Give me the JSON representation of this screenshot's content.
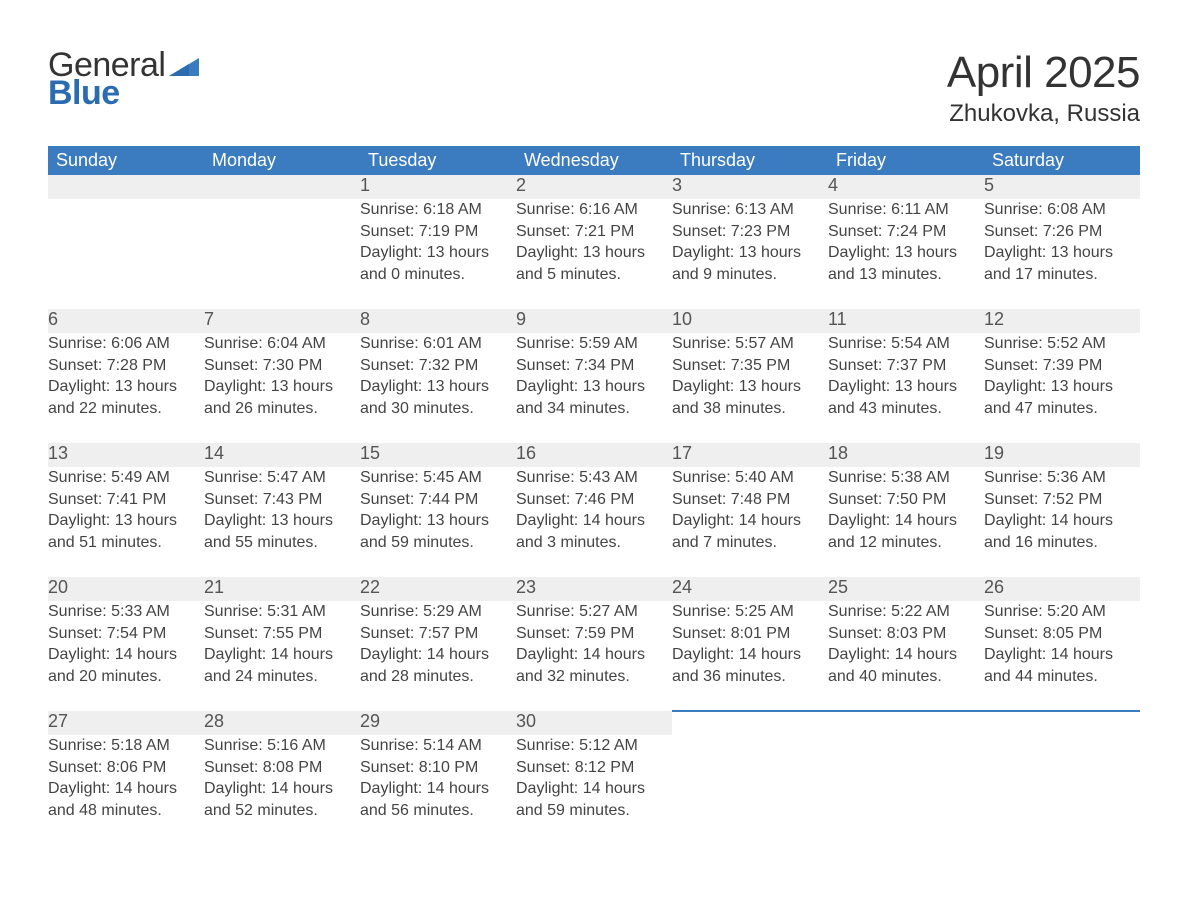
{
  "logo": {
    "general": "General",
    "blue": "Blue"
  },
  "title": "April 2025",
  "location": "Zhukovka, Russia",
  "colors": {
    "header_bg": "#3b7bbf",
    "header_text": "#ffffff",
    "daynum_bg": "#efefef",
    "week_border": "#3b7bbf",
    "body_text": "#444444",
    "logo_blue": "#2b6cb0",
    "page_bg": "#ffffff"
  },
  "day_headers": [
    "Sunday",
    "Monday",
    "Tuesday",
    "Wednesday",
    "Thursday",
    "Friday",
    "Saturday"
  ],
  "weeks": [
    [
      null,
      null,
      {
        "n": "1",
        "sunrise": "6:18 AM",
        "sunset": "7:19 PM",
        "dl_h": "13",
        "dl_m": "0"
      },
      {
        "n": "2",
        "sunrise": "6:16 AM",
        "sunset": "7:21 PM",
        "dl_h": "13",
        "dl_m": "5"
      },
      {
        "n": "3",
        "sunrise": "6:13 AM",
        "sunset": "7:23 PM",
        "dl_h": "13",
        "dl_m": "9"
      },
      {
        "n": "4",
        "sunrise": "6:11 AM",
        "sunset": "7:24 PM",
        "dl_h": "13",
        "dl_m": "13"
      },
      {
        "n": "5",
        "sunrise": "6:08 AM",
        "sunset": "7:26 PM",
        "dl_h": "13",
        "dl_m": "17"
      }
    ],
    [
      {
        "n": "6",
        "sunrise": "6:06 AM",
        "sunset": "7:28 PM",
        "dl_h": "13",
        "dl_m": "22"
      },
      {
        "n": "7",
        "sunrise": "6:04 AM",
        "sunset": "7:30 PM",
        "dl_h": "13",
        "dl_m": "26"
      },
      {
        "n": "8",
        "sunrise": "6:01 AM",
        "sunset": "7:32 PM",
        "dl_h": "13",
        "dl_m": "30"
      },
      {
        "n": "9",
        "sunrise": "5:59 AM",
        "sunset": "7:34 PM",
        "dl_h": "13",
        "dl_m": "34"
      },
      {
        "n": "10",
        "sunrise": "5:57 AM",
        "sunset": "7:35 PM",
        "dl_h": "13",
        "dl_m": "38"
      },
      {
        "n": "11",
        "sunrise": "5:54 AM",
        "sunset": "7:37 PM",
        "dl_h": "13",
        "dl_m": "43"
      },
      {
        "n": "12",
        "sunrise": "5:52 AM",
        "sunset": "7:39 PM",
        "dl_h": "13",
        "dl_m": "47"
      }
    ],
    [
      {
        "n": "13",
        "sunrise": "5:49 AM",
        "sunset": "7:41 PM",
        "dl_h": "13",
        "dl_m": "51"
      },
      {
        "n": "14",
        "sunrise": "5:47 AM",
        "sunset": "7:43 PM",
        "dl_h": "13",
        "dl_m": "55"
      },
      {
        "n": "15",
        "sunrise": "5:45 AM",
        "sunset": "7:44 PM",
        "dl_h": "13",
        "dl_m": "59"
      },
      {
        "n": "16",
        "sunrise": "5:43 AM",
        "sunset": "7:46 PM",
        "dl_h": "14",
        "dl_m": "3"
      },
      {
        "n": "17",
        "sunrise": "5:40 AM",
        "sunset": "7:48 PM",
        "dl_h": "14",
        "dl_m": "7"
      },
      {
        "n": "18",
        "sunrise": "5:38 AM",
        "sunset": "7:50 PM",
        "dl_h": "14",
        "dl_m": "12"
      },
      {
        "n": "19",
        "sunrise": "5:36 AM",
        "sunset": "7:52 PM",
        "dl_h": "14",
        "dl_m": "16"
      }
    ],
    [
      {
        "n": "20",
        "sunrise": "5:33 AM",
        "sunset": "7:54 PM",
        "dl_h": "14",
        "dl_m": "20"
      },
      {
        "n": "21",
        "sunrise": "5:31 AM",
        "sunset": "7:55 PM",
        "dl_h": "14",
        "dl_m": "24"
      },
      {
        "n": "22",
        "sunrise": "5:29 AM",
        "sunset": "7:57 PM",
        "dl_h": "14",
        "dl_m": "28"
      },
      {
        "n": "23",
        "sunrise": "5:27 AM",
        "sunset": "7:59 PM",
        "dl_h": "14",
        "dl_m": "32"
      },
      {
        "n": "24",
        "sunrise": "5:25 AM",
        "sunset": "8:01 PM",
        "dl_h": "14",
        "dl_m": "36"
      },
      {
        "n": "25",
        "sunrise": "5:22 AM",
        "sunset": "8:03 PM",
        "dl_h": "14",
        "dl_m": "40"
      },
      {
        "n": "26",
        "sunrise": "5:20 AM",
        "sunset": "8:05 PM",
        "dl_h": "14",
        "dl_m": "44"
      }
    ],
    [
      {
        "n": "27",
        "sunrise": "5:18 AM",
        "sunset": "8:06 PM",
        "dl_h": "14",
        "dl_m": "48"
      },
      {
        "n": "28",
        "sunrise": "5:16 AM",
        "sunset": "8:08 PM",
        "dl_h": "14",
        "dl_m": "52"
      },
      {
        "n": "29",
        "sunrise": "5:14 AM",
        "sunset": "8:10 PM",
        "dl_h": "14",
        "dl_m": "56"
      },
      {
        "n": "30",
        "sunrise": "5:12 AM",
        "sunset": "8:12 PM",
        "dl_h": "14",
        "dl_m": "59"
      },
      null,
      null,
      null
    ]
  ],
  "labels": {
    "sunrise": "Sunrise:",
    "sunset": "Sunset:",
    "daylight_pre": "Daylight:",
    "hours_word": "hours",
    "and_word": "and",
    "minutes_word": "minutes."
  }
}
